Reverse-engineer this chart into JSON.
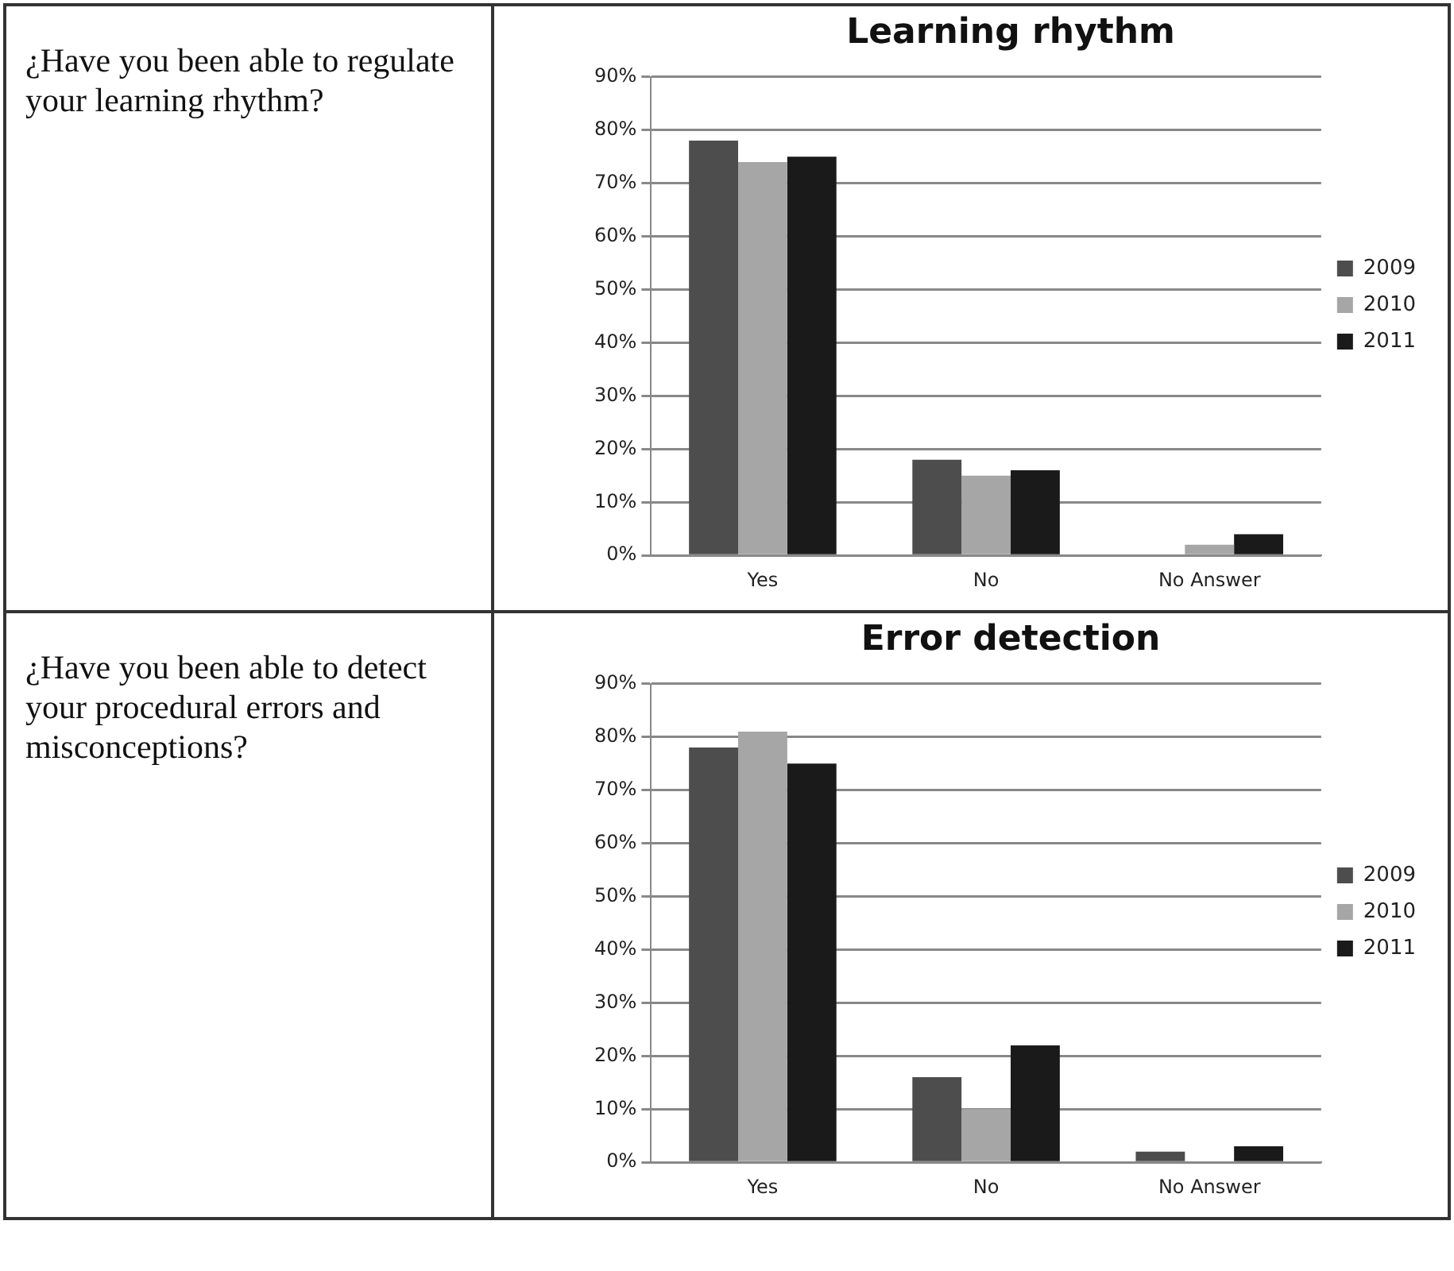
{
  "chart_data": [
    {
      "type": "bar",
      "title": "Learning rhythm",
      "annotations": [
        "¿Have you been able to regulate your learning rhythm?"
      ],
      "categories": [
        "Yes",
        "No",
        "No Answer"
      ],
      "series": [
        {
          "name": "2009",
          "color": "#4d4d4d",
          "values": [
            78,
            18,
            0
          ]
        },
        {
          "name": "2010",
          "color": "#a6a6a6",
          "values": [
            74,
            15,
            2
          ]
        },
        {
          "name": "2011",
          "color": "#1a1a1a",
          "values": [
            75,
            16,
            4
          ]
        }
      ],
      "ylim": [
        0,
        90
      ],
      "yticks": [
        {
          "value": 0,
          "label": "0%"
        },
        {
          "value": 10,
          "label": "10%"
        },
        {
          "value": 20,
          "label": "20%"
        },
        {
          "value": 30,
          "label": "30%"
        },
        {
          "value": 40,
          "label": "40%"
        },
        {
          "value": 50,
          "label": "50%"
        },
        {
          "value": 60,
          "label": "60%"
        },
        {
          "value": 70,
          "label": "70%"
        },
        {
          "value": 80,
          "label": "80%"
        },
        {
          "value": 90,
          "label": "90%"
        }
      ],
      "grid": "y",
      "legend": "right"
    },
    {
      "type": "bar",
      "title": "Error detection",
      "annotations": [
        "¿Have you been able to detect your procedural errors and misconceptions?"
      ],
      "categories": [
        "Yes",
        "No",
        "No Answer"
      ],
      "series": [
        {
          "name": "2009",
          "color": "#4d4d4d",
          "values": [
            78,
            16,
            2
          ]
        },
        {
          "name": "2010",
          "color": "#a6a6a6",
          "values": [
            81,
            10,
            0
          ]
        },
        {
          "name": "2011",
          "color": "#1a1a1a",
          "values": [
            75,
            22,
            3
          ]
        }
      ],
      "ylim": [
        0,
        90
      ],
      "yticks": [
        {
          "value": 0,
          "label": "0%"
        },
        {
          "value": 10,
          "label": "10%"
        },
        {
          "value": 20,
          "label": "20%"
        },
        {
          "value": 30,
          "label": "30%"
        },
        {
          "value": 40,
          "label": "40%"
        },
        {
          "value": 50,
          "label": "50%"
        },
        {
          "value": 60,
          "label": "60%"
        },
        {
          "value": 70,
          "label": "70%"
        },
        {
          "value": 80,
          "label": "80%"
        },
        {
          "value": 90,
          "label": "90%"
        }
      ],
      "grid": "y",
      "legend": "right"
    }
  ]
}
